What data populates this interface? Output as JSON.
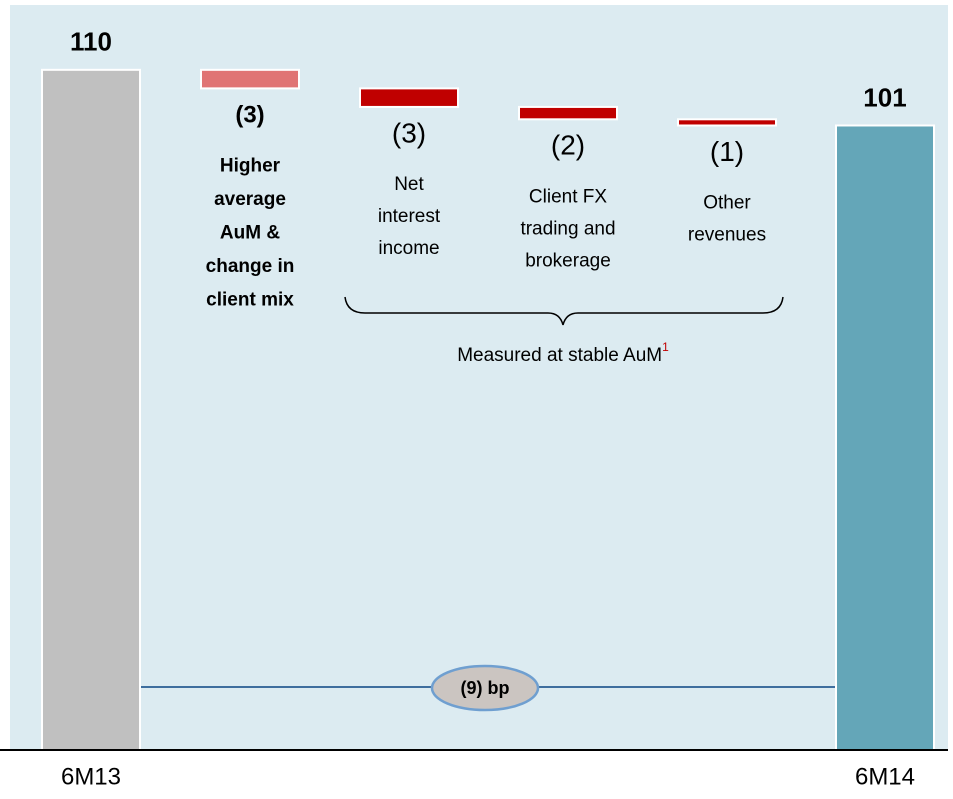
{
  "chart_data": {
    "type": "waterfall",
    "categories": [
      "6M13",
      null,
      null,
      null,
      null,
      "6M14"
    ],
    "values": [
      110,
      -3,
      -3,
      -2,
      -1,
      101
    ],
    "value_labels": [
      "110",
      "(3)",
      "(3)",
      "(2)",
      "(1)",
      "101"
    ],
    "measures": [
      "absolute",
      "relative",
      "relative",
      "relative",
      "relative",
      "absolute"
    ],
    "colors": [
      "#c0c0c0",
      "#e07474",
      "#c00000",
      "#c00000",
      "#c00000",
      "#64a6b8"
    ],
    "descriptions": [
      null,
      [
        "Higher",
        "average",
        "AuM &",
        "change in",
        "client mix"
      ],
      [
        "Net",
        "interest",
        "income"
      ],
      [
        "Client FX",
        "trading and",
        "brokerage"
      ],
      [
        "Other",
        "revenues"
      ],
      null
    ],
    "ylim": [
      0,
      120
    ],
    "bracket_label": {
      "text": "Measured at stable AuM",
      "footnote": "1"
    },
    "change_label": "(9) bp"
  }
}
